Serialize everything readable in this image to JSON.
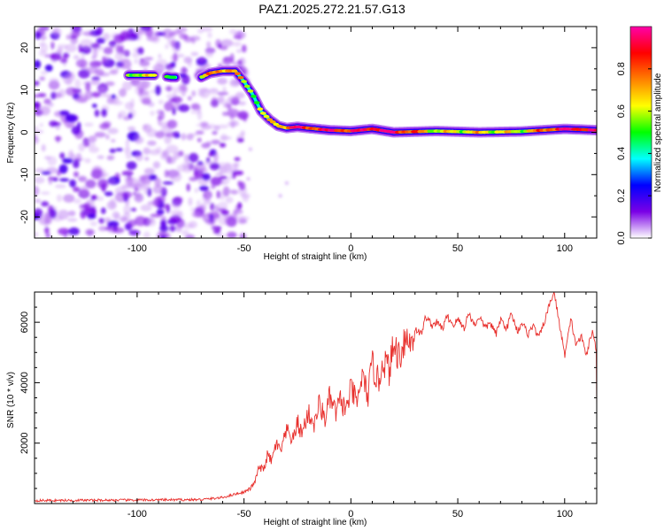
{
  "title": "PAZ1.2025.272.21.57.G13",
  "chart_data": [
    {
      "type": "heatmap",
      "name": "spectrogram",
      "xlabel": "Height of straight line (km)",
      "ylabel": "Frequency (Hz)",
      "xlim": [
        -148,
        115
      ],
      "ylim": [
        -25,
        25
      ],
      "xticks": [
        -100,
        -50,
        0,
        50,
        100
      ],
      "yticks": [
        -20,
        -10,
        0,
        10,
        20
      ],
      "colorbar": {
        "label": "Normalized spectral amplitude",
        "range": [
          0.0,
          1.0
        ],
        "ticks": [
          0.0,
          0.2,
          0.4,
          0.6,
          0.8
        ],
        "tick_labels": [
          "0.0",
          "0.2",
          "0.4",
          "0.6",
          "0.8"
        ],
        "colors": [
          "#ffffff",
          "#7a00e6",
          "#0000ff",
          "#00ffff",
          "#00ff00",
          "#ffff00",
          "#ff8000",
          "#ff0000",
          "#ff00aa"
        ]
      },
      "ridge": {
        "x": [
          -104,
          -90,
          -84,
          -70,
          -66,
          -60,
          -54,
          -50,
          -46,
          -42,
          -38,
          -34,
          -30,
          -25,
          -20,
          -10,
          0,
          10,
          20,
          40,
          60,
          80,
          100,
          115
        ],
        "freq": [
          13.5,
          13.5,
          13.0,
          13.0,
          14.0,
          14.5,
          14.5,
          12.0,
          9.0,
          5.0,
          3.0,
          1.5,
          1.0,
          1.3,
          1.0,
          0.5,
          0.3,
          0.8,
          0.0,
          0.3,
          0.0,
          0.2,
          0.8,
          0.5
        ],
        "amplitude": [
          0.6,
          0.6,
          0.5,
          0.6,
          0.7,
          0.8,
          0.7,
          0.6,
          0.6,
          0.6,
          0.6,
          0.7,
          0.8,
          0.95,
          0.85,
          0.9,
          0.85,
          0.95,
          0.95,
          0.6,
          0.65,
          0.6,
          0.95,
          0.9
        ]
      },
      "noise_region_x": [
        -148,
        -55
      ]
    },
    {
      "type": "line",
      "name": "snr",
      "xlabel": "Height of straight line (km)",
      "ylabel": "SNR (10 * v/v)",
      "xlim": [
        -148,
        115
      ],
      "ylim": [
        0,
        7000
      ],
      "xticks": [
        -100,
        -50,
        0,
        50,
        100
      ],
      "yticks": [
        2000,
        4000,
        6000
      ],
      "color": "#e8312e",
      "series": [
        {
          "name": "SNR",
          "x": [
            -148,
            -120,
            -90,
            -70,
            -60,
            -55,
            -50,
            -47,
            -45,
            -43,
            -41,
            -39,
            -37,
            -35,
            -33,
            -30,
            -27,
            -25,
            -23,
            -20,
            -17,
            -15,
            -12,
            -10,
            -7,
            -5,
            -2,
            0,
            3,
            5,
            8,
            10,
            13,
            15,
            18,
            20,
            23,
            25,
            28,
            30,
            33,
            35,
            38,
            40,
            43,
            45,
            48,
            50,
            53,
            55,
            58,
            60,
            63,
            65,
            68,
            70,
            73,
            75,
            78,
            80,
            83,
            85,
            88,
            90,
            93,
            95,
            97,
            100,
            103,
            105,
            108,
            110,
            113,
            115
          ],
          "y": [
            100,
            110,
            120,
            130,
            200,
            300,
            380,
            500,
            700,
            1200,
            1100,
            1600,
            1400,
            2000,
            1700,
            2400,
            2100,
            2700,
            2300,
            3000,
            2600,
            3300,
            2800,
            3500,
            3000,
            3400,
            3100,
            3800,
            3300,
            4200,
            3600,
            4600,
            4000,
            4800,
            4400,
            5200,
            4900,
            5500,
            5300,
            5800,
            5600,
            6200,
            5900,
            6000,
            5800,
            6200,
            5900,
            6100,
            5800,
            6300,
            5900,
            6200,
            5800,
            6000,
            5600,
            6100,
            5800,
            6300,
            5700,
            6000,
            5600,
            5900,
            5500,
            5900,
            6600,
            7000,
            6200,
            4900,
            6100,
            5300,
            5500,
            4900,
            5700,
            5000
          ]
        }
      ]
    }
  ]
}
